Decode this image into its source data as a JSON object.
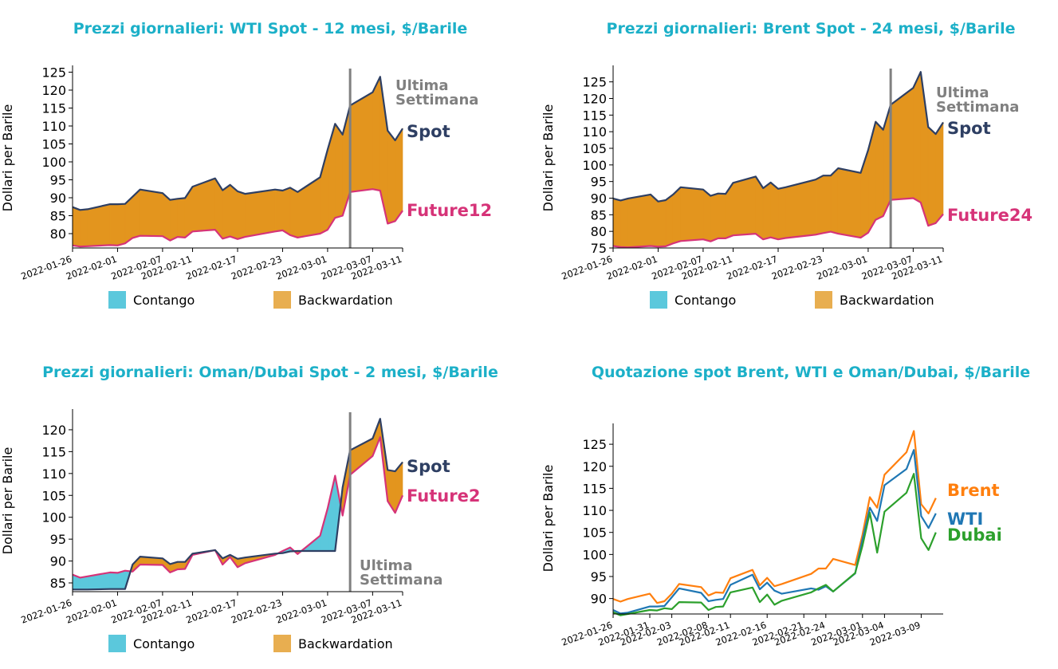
{
  "chart_data": [
    {
      "type": "area",
      "title": "Prezzi giornalieri: WTI Spot - 12 mesi, $/Barile",
      "ylabel": "Dollari per Barile",
      "ylim": [
        76,
        126
      ],
      "yticks": [
        80,
        85,
        90,
        95,
        100,
        105,
        110,
        115,
        120,
        125
      ],
      "xticks": [
        "2022-01-26",
        "2022-02-01",
        "2022-02-07",
        "2022-02-11",
        "2022-02-17",
        "2022-02-23",
        "2022-03-01",
        "2022-03-07",
        "2022-03-11"
      ],
      "x": [
        "2022-01-26",
        "2022-01-27",
        "2022-01-28",
        "2022-01-31",
        "2022-02-01",
        "2022-02-02",
        "2022-02-03",
        "2022-02-04",
        "2022-02-07",
        "2022-02-08",
        "2022-02-09",
        "2022-02-10",
        "2022-02-11",
        "2022-02-14",
        "2022-02-15",
        "2022-02-16",
        "2022-02-17",
        "2022-02-18",
        "2022-02-22",
        "2022-02-23",
        "2022-02-24",
        "2022-02-25",
        "2022-02-28",
        "2022-03-01",
        "2022-03-02",
        "2022-03-03",
        "2022-03-04",
        "2022-03-07",
        "2022-03-08",
        "2022-03-09",
        "2022-03-10",
        "2022-03-11"
      ],
      "series": [
        {
          "name": "Spot",
          "color": "#2e3f63",
          "values": [
            87.4,
            86.6,
            86.8,
            88.2,
            88.2,
            88.3,
            90.3,
            92.3,
            91.3,
            89.4,
            89.7,
            89.9,
            93.1,
            95.4,
            92.1,
            93.6,
            91.8,
            91.1,
            92.3,
            92.0,
            92.8,
            91.6,
            95.7,
            103.4,
            110.6,
            107.6,
            115.7,
            119.4,
            123.7,
            108.7,
            106.0,
            109.3
          ]
        },
        {
          "name": "Future12",
          "color": "#d63378",
          "values": [
            76.7,
            76.4,
            76.5,
            76.8,
            76.7,
            77.3,
            78.8,
            79.4,
            79.3,
            78.1,
            79.1,
            78.9,
            80.6,
            81.1,
            78.6,
            79.2,
            78.5,
            79.1,
            80.6,
            80.9,
            79.6,
            78.9,
            80.0,
            81.1,
            84.4,
            85.0,
            91.6,
            92.4,
            92.0,
            82.8,
            83.5,
            86.4
          ]
        }
      ],
      "series_labels": [
        "Spot",
        "Future12"
      ],
      "annotation": [
        "Ultima",
        "Settimana"
      ],
      "marker_date": "2022-03-04",
      "legend": [
        "Contango",
        "Backwardation"
      ]
    },
    {
      "type": "area",
      "title": "Prezzi giornalieri: Brent Spot - 24 mesi, $/Barile",
      "ylabel": "Dollari per Barile",
      "ylim": [
        75,
        129
      ],
      "yticks": [
        75,
        80,
        85,
        90,
        95,
        100,
        105,
        110,
        115,
        120,
        125
      ],
      "xticks": [
        "2022-01-26",
        "2022-02-01",
        "2022-02-07",
        "2022-02-11",
        "2022-02-17",
        "2022-02-23",
        "2022-03-01",
        "2022-03-07",
        "2022-03-11"
      ],
      "x": [
        "2022-01-26",
        "2022-01-27",
        "2022-01-28",
        "2022-01-31",
        "2022-02-01",
        "2022-02-02",
        "2022-02-03",
        "2022-02-04",
        "2022-02-07",
        "2022-02-08",
        "2022-02-09",
        "2022-02-10",
        "2022-02-11",
        "2022-02-14",
        "2022-02-15",
        "2022-02-16",
        "2022-02-17",
        "2022-02-18",
        "2022-02-22",
        "2022-02-23",
        "2022-02-24",
        "2022-02-25",
        "2022-02-28",
        "2022-03-01",
        "2022-03-02",
        "2022-03-03",
        "2022-03-04",
        "2022-03-07",
        "2022-03-08",
        "2022-03-09",
        "2022-03-10",
        "2022-03-11"
      ],
      "series": [
        {
          "name": "Spot",
          "color": "#2e3f63",
          "values": [
            89.9,
            89.3,
            89.9,
            91.1,
            89.0,
            89.4,
            91.1,
            93.3,
            92.6,
            90.7,
            91.4,
            91.3,
            94.6,
            96.5,
            93.0,
            94.7,
            92.8,
            93.3,
            95.6,
            96.8,
            96.8,
            99.0,
            97.6,
            104.5,
            113.0,
            110.6,
            118.1,
            123.2,
            128.0,
            111.4,
            109.3,
            112.8
          ]
        },
        {
          "name": "Future24",
          "color": "#d63378",
          "values": [
            75.6,
            75.3,
            75.2,
            75.6,
            75.4,
            75.5,
            76.4,
            77.1,
            77.6,
            77.0,
            77.9,
            77.9,
            78.8,
            79.3,
            77.6,
            78.2,
            77.6,
            78.0,
            79.0,
            79.5,
            79.9,
            79.3,
            78.1,
            79.6,
            83.5,
            84.6,
            89.5,
            90.0,
            88.7,
            81.7,
            82.5,
            85.2
          ]
        }
      ],
      "series_labels": [
        "Spot",
        "Future24"
      ],
      "annotation": [
        "Ultima",
        "Settimana"
      ],
      "marker_date": "2022-03-04",
      "legend": [
        "Contango",
        "Backwardation"
      ]
    },
    {
      "type": "area",
      "title": "Prezzi giornalieri: Oman/Dubai Spot - 2 mesi, $/Barile",
      "ylabel": "Dollari per Barile",
      "ylim": [
        83,
        124
      ],
      "yticks": [
        85,
        90,
        95,
        100,
        105,
        110,
        115,
        120
      ],
      "xticks": [
        "2022-01-26",
        "2022-02-01",
        "2022-02-07",
        "2022-02-11",
        "2022-02-17",
        "2022-02-23",
        "2022-03-01",
        "2022-03-07",
        "2022-03-11"
      ],
      "x": [
        "2022-01-26",
        "2022-01-27",
        "2022-01-28",
        "2022-01-31",
        "2022-02-01",
        "2022-02-02",
        "2022-02-03",
        "2022-02-04",
        "2022-02-07",
        "2022-02-08",
        "2022-02-09",
        "2022-02-10",
        "2022-02-11",
        "2022-02-14",
        "2022-02-15",
        "2022-02-16",
        "2022-02-17",
        "2022-02-18",
        "2022-02-22",
        "2022-02-23",
        "2022-02-24",
        "2022-02-25",
        "2022-02-28",
        "2022-03-01",
        "2022-03-02",
        "2022-03-03",
        "2022-03-04",
        "2022-03-07",
        "2022-03-08",
        "2022-03-09",
        "2022-03-10",
        "2022-03-11"
      ],
      "series": [
        {
          "name": "Spot",
          "color": "#2e3f63",
          "values": [
            83.5,
            83.5,
            83.5,
            83.6,
            83.6,
            83.6,
            89.2,
            91.0,
            90.6,
            89.3,
            89.8,
            89.8,
            91.7,
            92.5,
            90.6,
            91.4,
            90.5,
            90.8,
            91.7,
            91.8,
            92.2,
            92.3,
            92.3,
            92.3,
            92.3,
            106.8,
            115.3,
            118.0,
            122.5,
            110.8,
            110.5,
            112.6
          ]
        },
        {
          "name": "Future2",
          "color": "#d63378",
          "values": [
            86.9,
            86.2,
            86.5,
            87.4,
            87.3,
            87.8,
            87.6,
            89.2,
            89.1,
            87.4,
            88.1,
            88.2,
            91.4,
            92.5,
            89.2,
            90.9,
            88.6,
            89.5,
            91.4,
            92.3,
            93.1,
            91.6,
            95.8,
            102.0,
            109.5,
            100.4,
            109.7,
            114.0,
            118.3,
            103.7,
            101.0,
            105.0
          ]
        }
      ],
      "series_labels": [
        "Spot",
        "Future2"
      ],
      "annotation": [
        "Ultima",
        "Settimana"
      ],
      "marker_date": "2022-03-04",
      "legend": [
        "Contango",
        "Backwardation"
      ]
    },
    {
      "type": "line",
      "title": "Quotazione spot Brent, WTI e Oman/Dubai, $/Barile",
      "ylabel": "Dollari per Barile",
      "ylim": [
        86.5,
        129
      ],
      "yticks": [
        90,
        95,
        100,
        105,
        110,
        115,
        120,
        125
      ],
      "xticks": [
        "2022-01-26",
        "2022-01-31",
        "2022-02-03",
        "2022-02-08",
        "2022-02-11",
        "2022-02-16",
        "2022-02-21",
        "2022-02-24",
        "2022-03-01",
        "2022-03-04",
        "2022-03-09"
      ],
      "x": [
        "2022-01-26",
        "2022-01-27",
        "2022-01-28",
        "2022-01-31",
        "2022-02-01",
        "2022-02-02",
        "2022-02-03",
        "2022-02-04",
        "2022-02-07",
        "2022-02-08",
        "2022-02-09",
        "2022-02-10",
        "2022-02-11",
        "2022-02-14",
        "2022-02-15",
        "2022-02-16",
        "2022-02-17",
        "2022-02-18",
        "2022-02-22",
        "2022-02-23",
        "2022-02-24",
        "2022-02-25",
        "2022-02-28",
        "2022-03-01",
        "2022-03-02",
        "2022-03-03",
        "2022-03-04",
        "2022-03-07",
        "2022-03-08",
        "2022-03-09",
        "2022-03-10",
        "2022-03-11"
      ],
      "series": [
        {
          "name": "Brent",
          "color": "#ff7f0e",
          "values": [
            89.9,
            89.3,
            89.9,
            91.1,
            89.0,
            89.4,
            91.1,
            93.3,
            92.6,
            90.7,
            91.4,
            91.3,
            94.6,
            96.5,
            93.0,
            94.7,
            92.8,
            93.3,
            95.6,
            96.8,
            96.8,
            99.0,
            97.6,
            104.5,
            113.0,
            110.6,
            118.1,
            123.2,
            128.0,
            111.4,
            109.3,
            112.8
          ]
        },
        {
          "name": "WTI",
          "color": "#1f77b4",
          "values": [
            87.4,
            86.6,
            86.8,
            88.2,
            88.2,
            88.3,
            90.3,
            92.3,
            91.3,
            89.4,
            89.7,
            89.9,
            93.1,
            95.4,
            92.1,
            93.6,
            91.8,
            91.1,
            92.3,
            92.0,
            92.8,
            91.6,
            95.7,
            103.4,
            110.6,
            107.6,
            115.7,
            119.4,
            123.7,
            108.7,
            106.0,
            109.3
          ]
        },
        {
          "name": "Dubai",
          "color": "#2ca02c",
          "values": [
            86.9,
            86.2,
            86.5,
            87.4,
            87.3,
            87.8,
            87.6,
            89.2,
            89.1,
            87.4,
            88.1,
            88.2,
            91.4,
            92.5,
            89.2,
            90.9,
            88.6,
            89.5,
            91.4,
            92.3,
            93.1,
            91.6,
            95.8,
            102.0,
            109.5,
            100.4,
            109.7,
            114.0,
            118.3,
            103.7,
            101.0,
            105.0
          ]
        }
      ],
      "series_labels": [
        "Brent",
        "WTI",
        "Dubai"
      ]
    }
  ],
  "colors": {
    "title": "#1cb0c8",
    "contango": "#5bc8dc",
    "backwardation": "#e8ae50",
    "backwardation_fill": "#e3951e",
    "spot": "#2e3f63",
    "future": "#d63378",
    "marker": "#808080"
  }
}
